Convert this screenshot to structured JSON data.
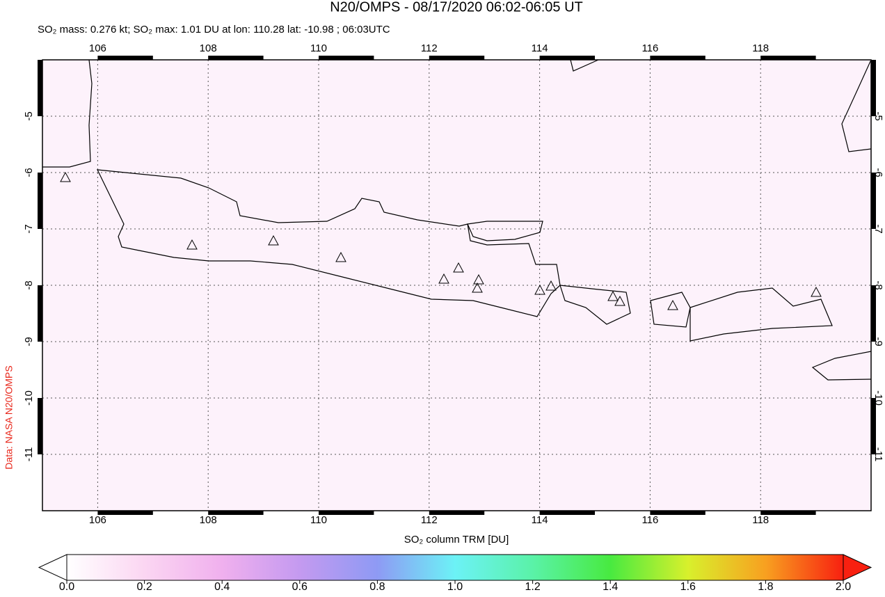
{
  "title": "N20/OMPS - 08/17/2020 06:02-06:05 UT",
  "subtitle": "SO₂ mass: 0.276 kt; SO₂ max: 1.01 DU at lon: 110.28 lat: -10.98 ; 06:03UTC",
  "credit": "Data: NASA N20/OMPS",
  "map": {
    "xlim": [
      105,
      120
    ],
    "ylim": [
      -12,
      -4
    ],
    "xticks": [
      106,
      108,
      110,
      112,
      114,
      116,
      118
    ],
    "yticks": [
      -5,
      -6,
      -7,
      -8,
      -9,
      -10,
      -11
    ]
  },
  "colorbar": {
    "label": "SO₂ column TRM [DU]",
    "lim": [
      0,
      2
    ],
    "ticks": [
      {
        "value": 0,
        "label": "0.0"
      },
      {
        "value": 0.2,
        "label": "0.2"
      },
      {
        "value": 0.4,
        "label": "0.4"
      },
      {
        "value": 0.6,
        "label": "0.6"
      },
      {
        "value": 0.8,
        "label": "0.8"
      },
      {
        "value": 1,
        "label": "1.0"
      },
      {
        "value": 1.2,
        "label": "1.2"
      },
      {
        "value": 1.4,
        "label": "1.4"
      },
      {
        "value": 1.6,
        "label": "1.6"
      },
      {
        "value": 1.8,
        "label": "1.8"
      },
      {
        "value": 2,
        "label": "2.0"
      }
    ]
  }
}
